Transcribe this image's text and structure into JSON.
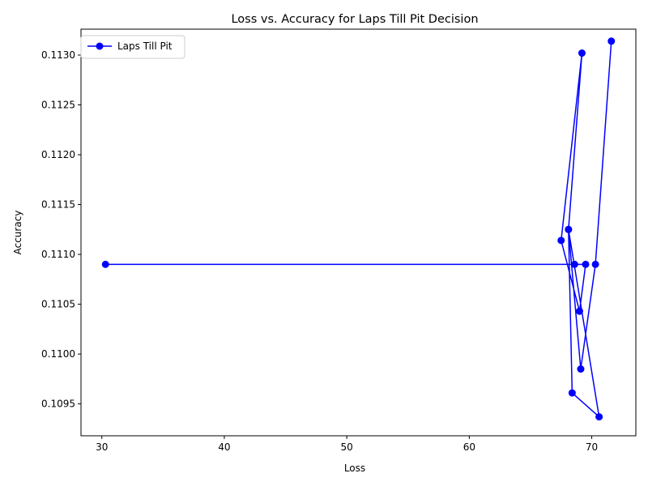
{
  "chart_data": {
    "type": "line",
    "title": "Loss vs. Accuracy for Laps Till Pit Decision",
    "xlabel": "Loss",
    "ylabel": "Accuracy",
    "xlim": [
      28.3,
      73.6
    ],
    "ylim": [
      0.10918,
      0.11326
    ],
    "xticks": [
      30,
      40,
      50,
      60,
      70
    ],
    "yticks": [
      0.1095,
      0.11,
      0.1105,
      0.111,
      0.1115,
      0.112,
      0.1125,
      0.113
    ],
    "xtick_labels": [
      "30",
      "40",
      "50",
      "60",
      "70"
    ],
    "ytick_labels": [
      "0.1095",
      "0.1100",
      "0.1105",
      "0.1110",
      "0.1115",
      "0.1120",
      "0.1125",
      "0.1130"
    ],
    "grid": false,
    "legend_position": "top-left",
    "series": [
      {
        "name": "Laps Till Pit",
        "color": "#0000ff",
        "marker": "circle",
        "points": [
          {
            "x": 30.3,
            "y": 0.1109
          },
          {
            "x": 68.6,
            "y": 0.1109
          },
          {
            "x": 69.5,
            "y": 0.1109
          },
          {
            "x": 69.0,
            "y": 0.11043
          },
          {
            "x": 67.5,
            "y": 0.11114
          },
          {
            "x": 69.2,
            "y": 0.11302
          },
          {
            "x": 68.1,
            "y": 0.11125
          },
          {
            "x": 68.4,
            "y": 0.10961
          },
          {
            "x": 70.6,
            "y": 0.10937
          },
          {
            "x": 68.1,
            "y": 0.11125
          },
          {
            "x": 69.1,
            "y": 0.10985
          },
          {
            "x": 70.3,
            "y": 0.1109
          },
          {
            "x": 71.6,
            "y": 0.11314
          }
        ]
      }
    ]
  }
}
